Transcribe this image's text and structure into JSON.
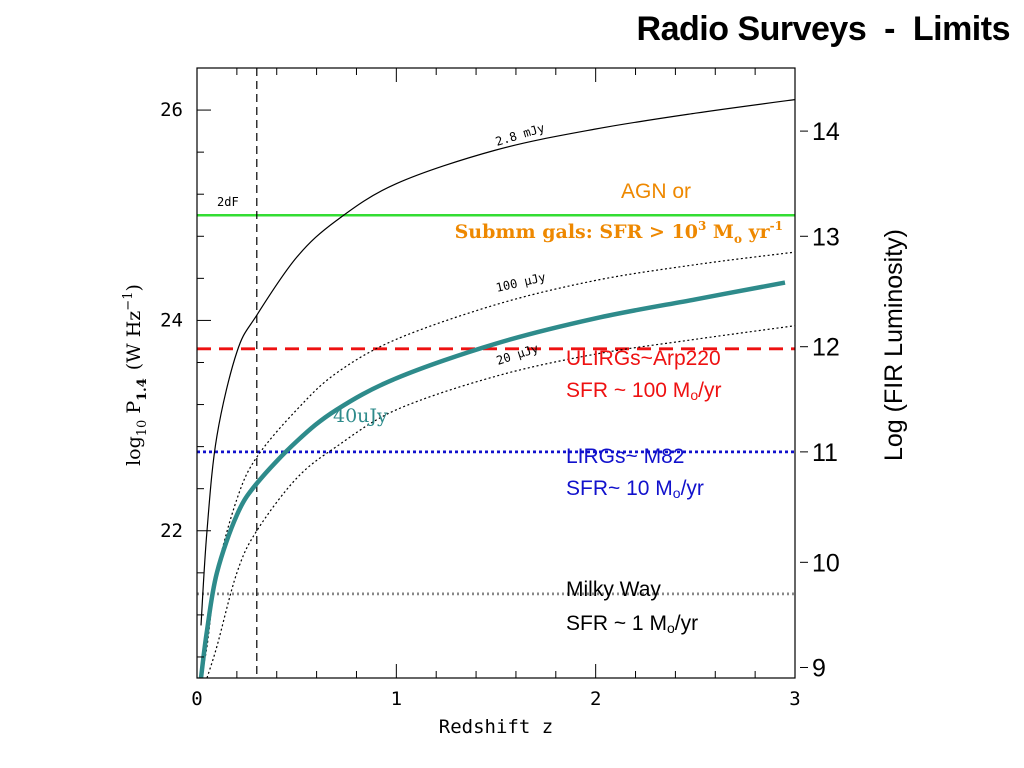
{
  "slide": {
    "title": "Radio Surveys  -  Limits"
  },
  "chart_data": {
    "type": "line",
    "xlabel": "Redshift z",
    "ylabel": "log",
    "ylabel_sub": "10",
    "ylabel_p": "P",
    "ylabel_p_sub": "1.4",
    "ylabel_units": "(W Hz",
    "ylabel_exp": "−1",
    "ylabel_close": ")",
    "y2label": "Log (FIR Luminosity)",
    "xlim": [
      0,
      3
    ],
    "ylim": [
      20.6,
      26.4
    ],
    "xticks": [
      0,
      1,
      2,
      3
    ],
    "xtick_labels": [
      "0",
      "1",
      "2",
      "3"
    ],
    "yticks": [
      22,
      24,
      26
    ],
    "ytick_labels": [
      "22",
      "24",
      "26"
    ],
    "y2ticks": [
      {
        "label": "14",
        "y": 25.8
      },
      {
        "label": "13",
        "y": 24.8
      },
      {
        "label": "12",
        "y": 23.75
      },
      {
        "label": "11",
        "y": 22.75
      },
      {
        "label": "10",
        "y": 21.7
      },
      {
        "label": "9",
        "y": 20.7
      }
    ],
    "series": [
      {
        "name": "2.8 mJy",
        "style": "solid",
        "color": "#000000",
        "x": [
          0.02,
          0.05,
          0.1,
          0.2,
          0.3,
          0.5,
          0.7,
          1.0,
          1.5,
          2.0,
          2.5,
          3.0
        ],
        "y": [
          21.1,
          22.0,
          22.9,
          23.7,
          24.05,
          24.6,
          24.95,
          25.3,
          25.62,
          25.82,
          25.97,
          26.1
        ]
      },
      {
        "name": "100 µJy",
        "style": "dotted",
        "color": "#000000",
        "x": [
          0.02,
          0.05,
          0.1,
          0.2,
          0.3,
          0.5,
          0.7,
          1.0,
          1.5,
          2.0,
          2.5,
          3.0
        ],
        "y": [
          20.6,
          20.9,
          21.6,
          22.3,
          22.7,
          23.15,
          23.5,
          23.82,
          24.15,
          24.38,
          24.53,
          24.65
        ]
      },
      {
        "name": "20 µJy",
        "style": "dotted",
        "color": "#000000",
        "x": [
          0.05,
          0.1,
          0.2,
          0.3,
          0.5,
          0.7,
          1.0,
          1.5,
          2.0,
          2.5,
          3.0
        ],
        "y": [
          20.6,
          20.9,
          21.6,
          22.0,
          22.5,
          22.8,
          23.15,
          23.47,
          23.68,
          23.82,
          23.95
        ]
      },
      {
        "name": "40uJy",
        "style": "thick",
        "color": "#2e8b8b",
        "x": [
          0.02,
          0.05,
          0.1,
          0.2,
          0.3,
          0.5,
          0.7,
          1.0,
          1.5,
          2.0,
          2.5,
          2.95
        ],
        "y": [
          20.6,
          21.05,
          21.6,
          22.15,
          22.45,
          22.85,
          23.15,
          23.45,
          23.78,
          24.02,
          24.2,
          24.36
        ]
      }
    ],
    "hlines": [
      {
        "y": 25.0,
        "color": "#33dd33",
        "style": "solid"
      },
      {
        "y": 23.73,
        "color": "#ee1111",
        "style": "dashed"
      },
      {
        "y": 22.75,
        "color": "#1111cc",
        "style": "dotted"
      },
      {
        "y": 21.4,
        "color": "#888888",
        "style": "dotted"
      }
    ],
    "vline": {
      "x": 0.3,
      "label": "2dF"
    },
    "annotations": {
      "agn_line1": "AGN or",
      "submm_prefix": "Submm gals: SFR > 10",
      "submm_exp": "3",
      "submm_m": " M",
      "submm_o": "o",
      "submm_yr": " yr",
      "submm_yexp": "-1",
      "ulirg_line1": "ULIRGs~Arp220",
      "ulirg_line2a": "SFR ~ 100 M",
      "ulirg_line2o": "o",
      "ulirg_line2b": "/yr",
      "lirg_line1": "LIRGs~ M82",
      "lirg_line2a": "SFR~ 10 M",
      "lirg_line2o": "o",
      "lirg_line2b": "/yr",
      "mw_line1": "Milky Way",
      "mw_line2a": "SFR ~ 1 M",
      "mw_line2o": "o",
      "mw_line2b": "/yr"
    },
    "colors": {
      "agn": "#ee8800",
      "ulirg": "#ee1111",
      "lirg": "#1111cc",
      "teal": "#2e8b8b"
    }
  }
}
